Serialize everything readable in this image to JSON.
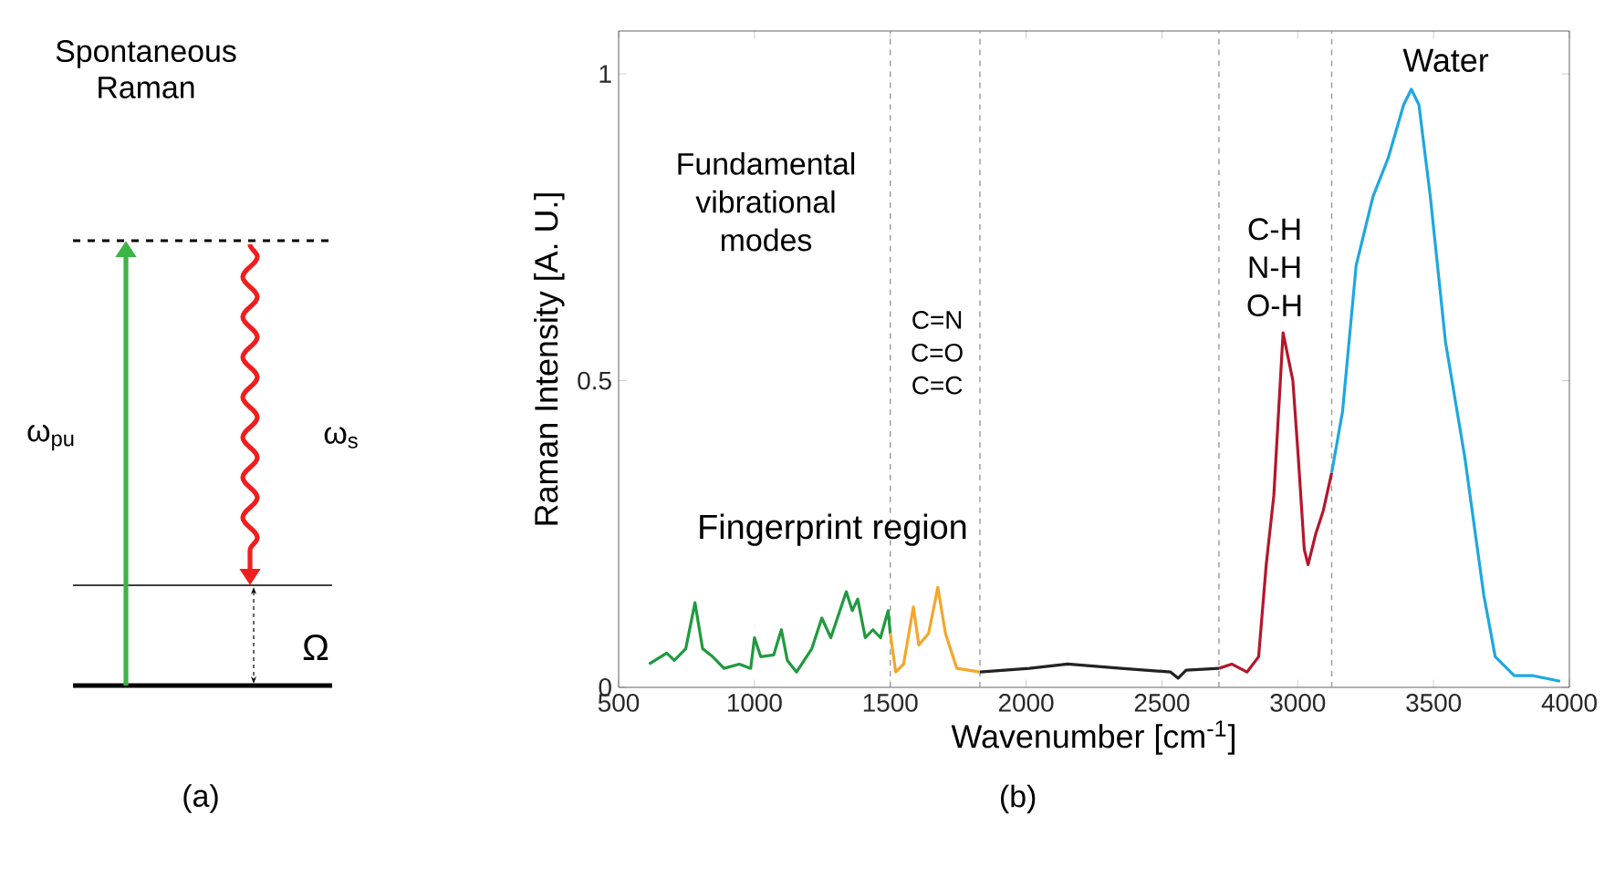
{
  "chart_data": [
    {
      "type": "other",
      "title": "Spontaneous Raman",
      "annotations": [
        "ω$_{pu}$",
        "ω$_{s}$",
        "Ω",
        "(a)"
      ]
    },
    {
      "type": "line",
      "xlabel": "Wavenumber [cm$^{-1}$]",
      "ylabel": "Raman Intensity [A. U.]",
      "xlim": [
        500,
        4000
      ],
      "ylim": [
        0,
        1.07
      ],
      "xticks": [
        500,
        1000,
        1500,
        2000,
        2500,
        3000,
        3500,
        4000
      ],
      "yticks": [
        0,
        0.5,
        1
      ],
      "grid": false,
      "marker": "none",
      "line_style": "solid",
      "series": [
        {
          "color": "#1f9a3f",
          "x": [
            612,
            677,
            705,
            747,
            781,
            809,
            846,
            888,
            944,
            986,
            1000,
            1023,
            1071,
            1099,
            1121,
            1155,
            1211,
            1248,
            1281,
            1338,
            1360,
            1380,
            1408,
            1436,
            1464,
            1492,
            1500
          ],
          "values": [
            0.038,
            0.056,
            0.044,
            0.063,
            0.138,
            0.063,
            0.05,
            0.031,
            0.038,
            0.031,
            0.081,
            0.05,
            0.053,
            0.094,
            0.044,
            0.025,
            0.063,
            0.113,
            0.081,
            0.156,
            0.125,
            0.144,
            0.081,
            0.094,
            0.081,
            0.125,
            0.088
          ]
        },
        {
          "color": "#f5a62a",
          "x": [
            1500,
            1520,
            1549,
            1585,
            1605,
            1641,
            1675,
            1703,
            1745,
            1830
          ],
          "values": [
            0.088,
            0.025,
            0.038,
            0.131,
            0.069,
            0.088,
            0.163,
            0.088,
            0.031,
            0.025
          ]
        },
        {
          "color": "#222222",
          "x": [
            1830,
            2012,
            2153,
            2350,
            2532,
            2560,
            2589,
            2710
          ],
          "values": [
            0.025,
            0.031,
            0.038,
            0.031,
            0.025,
            0.015,
            0.028,
            0.031
          ]
        },
        {
          "color": "#b5162b",
          "x": [
            2710,
            2757,
            2813,
            2856,
            2884,
            2912,
            2946,
            2982,
            3002,
            3024,
            3038,
            3066,
            3094,
            3125
          ],
          "values": [
            0.031,
            0.038,
            0.025,
            0.05,
            0.2,
            0.313,
            0.578,
            0.5,
            0.375,
            0.225,
            0.2,
            0.25,
            0.288,
            0.35
          ]
        },
        {
          "color": "#1ea7e1",
          "x": [
            3125,
            3165,
            3215,
            3277,
            3333,
            3390,
            3418,
            3446,
            3488,
            3544,
            3615,
            3685,
            3727,
            3797,
            3867,
            3966
          ],
          "values": [
            0.35,
            0.45,
            0.688,
            0.8,
            0.863,
            0.95,
            0.975,
            0.95,
            0.8,
            0.563,
            0.375,
            0.15,
            0.05,
            0.019,
            0.019,
            0.01
          ]
        }
      ],
      "ref_lines": [
        {
          "axis": "x",
          "value": 1500,
          "color": "#999999",
          "line_style": "dashed"
        },
        {
          "axis": "x",
          "value": 1830,
          "color": "#999999",
          "line_style": "dashed"
        },
        {
          "axis": "x",
          "value": 2710,
          "color": "#999999",
          "line_style": "dashed"
        },
        {
          "axis": "x",
          "value": 3125,
          "color": "#999999",
          "line_style": "dashed"
        }
      ],
      "annotations": [
        "Fundamental vibrational modes",
        "C=N C=O C=C",
        "C-H N-H O-H",
        "Water",
        "Fingerprint region",
        "(b)"
      ]
    }
  ]
}
